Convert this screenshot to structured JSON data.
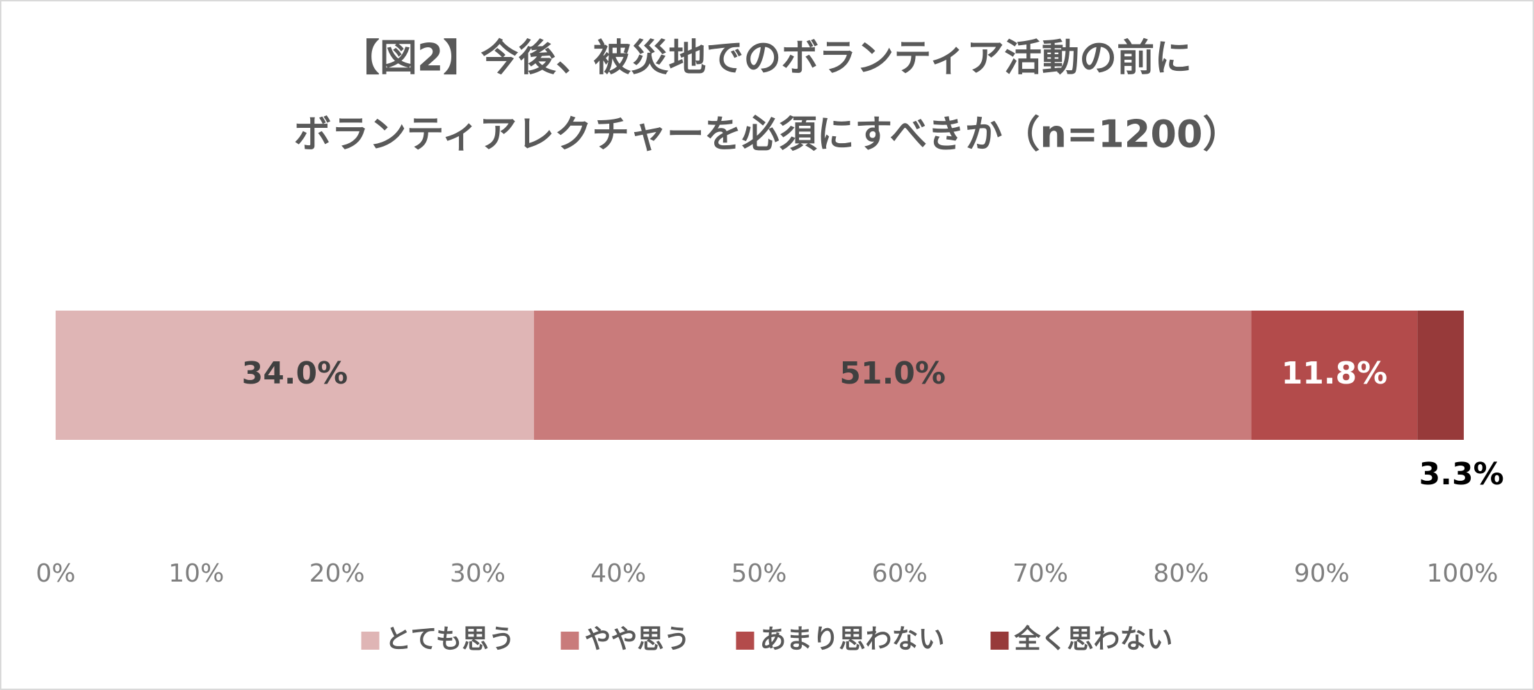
{
  "chart_data": {
    "type": "stacked-barh",
    "title": [
      "【図2】今後、被災地でのボランティア活動の前に",
      "ボランティアレクチャーを必須にすべきか（n=1200）"
    ],
    "categories": [
      null
    ],
    "series": [
      {
        "name": "とても思う",
        "color": "#dfb5b5",
        "values": [
          34.0
        ],
        "value_labels": [
          "34.0%"
        ]
      },
      {
        "name": "やや思う",
        "color": "#c97b7b",
        "values": [
          51.0
        ],
        "value_labels": [
          "51.0%"
        ]
      },
      {
        "name": "あまり思わない",
        "color": "#b34b4b",
        "values": [
          11.8
        ],
        "value_labels": [
          "11.8%"
        ]
      },
      {
        "name": "全く思わない",
        "color": "#973a3a",
        "values": [
          3.3
        ],
        "value_labels": [
          "3.3%"
        ]
      }
    ],
    "xlim": [
      0,
      100
    ],
    "xticks": [
      {
        "value": 0,
        "label": "0%"
      },
      {
        "value": 10,
        "label": "10%"
      },
      {
        "value": 20,
        "label": "20%"
      },
      {
        "value": 30,
        "label": "30%"
      },
      {
        "value": 40,
        "label": "40%"
      },
      {
        "value": 50,
        "label": "50%"
      },
      {
        "value": 60,
        "label": "60%"
      },
      {
        "value": 70,
        "label": "70%"
      },
      {
        "value": 80,
        "label": "80%"
      },
      {
        "value": 90,
        "label": "90%"
      },
      {
        "value": 100,
        "label": "100%"
      }
    ],
    "legend": "bottom"
  }
}
